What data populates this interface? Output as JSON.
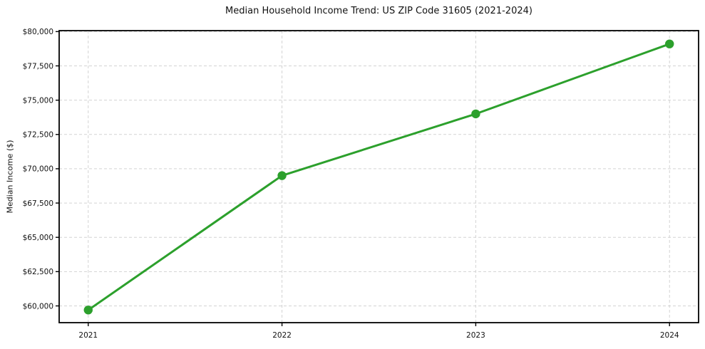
{
  "figure": {
    "background": "#ffffff"
  },
  "chart_data": {
    "type": "line",
    "title": "Median Household Income Trend: US ZIP Code 31605 (2021-2024)",
    "xlabel": "",
    "ylabel": "Median Income ($)",
    "x": [
      2021,
      2022,
      2023,
      2024
    ],
    "xtick_labels": [
      "2021",
      "2022",
      "2023",
      "2024"
    ],
    "series": [
      {
        "name": "Median Household Income",
        "values": [
          59700,
          69500,
          74000,
          79100
        ],
        "color": "#2ca02c",
        "marker": "circle"
      }
    ],
    "yticks": [
      60000,
      62500,
      65000,
      67500,
      70000,
      72500,
      75000,
      77500,
      80000
    ],
    "ytick_labels": [
      "$60,000",
      "$62,500",
      "$65,000",
      "$67,500",
      "$70,000",
      "$72,500",
      "$75,000",
      "$77,500",
      "$80,000"
    ],
    "xlim": [
      2020.85,
      2024.15
    ],
    "ylim": [
      58780,
      80070
    ],
    "grid": true,
    "grid_color": "#d3d3d3",
    "axis_color": "#000000",
    "tick_label_color": "#111111",
    "legend_position": "none"
  }
}
